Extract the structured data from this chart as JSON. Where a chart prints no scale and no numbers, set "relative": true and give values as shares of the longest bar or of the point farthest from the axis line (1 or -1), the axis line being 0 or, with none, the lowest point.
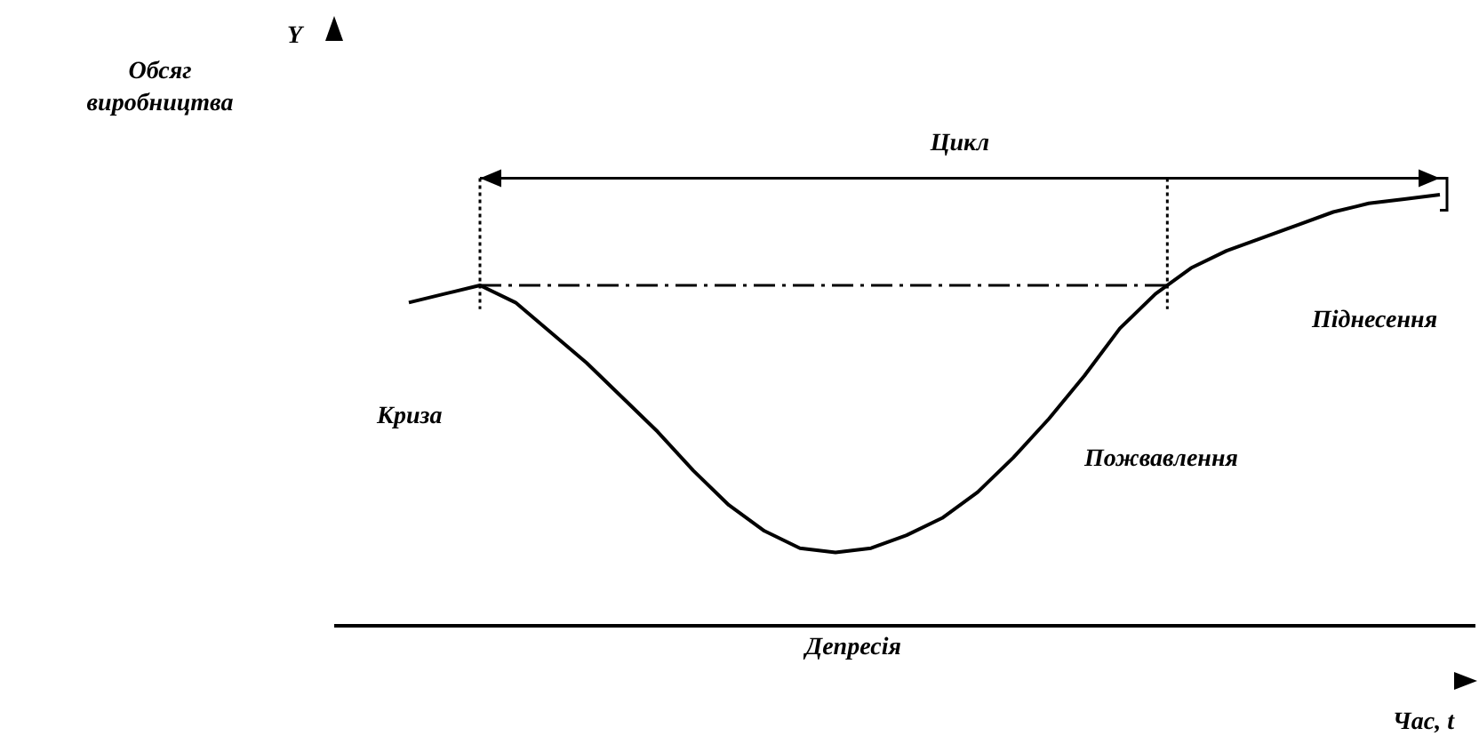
{
  "chart_data": {
    "type": "line",
    "relative": true,
    "xlabel": "Час, t",
    "categories": [
      null,
      null,
      null,
      null,
      null,
      null,
      null,
      null,
      null,
      null,
      null,
      null,
      null,
      null,
      null,
      null,
      null,
      null,
      null,
      null,
      null,
      null,
      null,
      null,
      null,
      null,
      null,
      null,
      null,
      null
    ],
    "series": [
      {
        "color": "#000000",
        "values": [
          0.75,
          0.77,
          0.79,
          0.75,
          0.68,
          0.61,
          0.53,
          0.45,
          0.36,
          0.28,
          0.22,
          0.18,
          0.17,
          0.18,
          0.21,
          0.25,
          0.31,
          0.39,
          0.48,
          0.58,
          0.69,
          0.77,
          0.83,
          0.87,
          0.9,
          0.93,
          0.96,
          0.98,
          0.99,
          1
        ]
      }
    ],
    "ref_lines": [
      {
        "axis": "y",
        "value": 0.79,
        "line_style": "dashdot",
        "color": "#000000"
      }
    ],
    "annotations": [
      "Обсяг виробництва",
      "Y",
      "Цикл",
      "Криза",
      "Депресія",
      "Пожвавлення",
      "Піднесення"
    ]
  }
}
